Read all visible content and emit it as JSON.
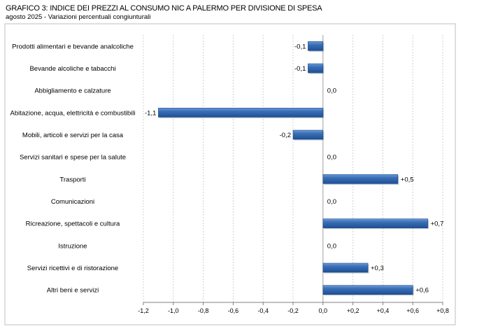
{
  "chart_data": {
    "type": "bar",
    "orientation": "horizontal",
    "title": "GRAFICO 3: INDICE DEI PREZZI AL CONSUMO NIC A PALERMO PER DIVISIONE DI SPESA",
    "subtitle": "agosto 2025 - Variazioni percentuali congiunturali",
    "xlabel": "",
    "ylabel": "",
    "xlim": [
      -1.2,
      0.8
    ],
    "x_ticks": [
      -1.2,
      -1.0,
      -0.8,
      -0.6,
      -0.4,
      -0.2,
      0.0,
      0.2,
      0.4,
      0.6,
      0.8
    ],
    "x_tick_labels": [
      "-1,2",
      "-1,0",
      "-0,8",
      "-0,6",
      "-0,4",
      "-0,2",
      "0,0",
      "+0,2",
      "+0,4",
      "+0,6",
      "+0,8"
    ],
    "grid": "vertical",
    "legend": "none",
    "bar_color": "#2f62a8",
    "categories": [
      "Prodotti alimentari e bevande analcoliche",
      "Bevande alcoliche e tabacchi",
      "Abbigliamento e calzature",
      "Abitazione, acqua, elettricità e combustibili",
      "Mobili, articoli e servizi per la casa",
      "Servizi sanitari e spese per la salute",
      "Trasporti",
      "Comunicazioni",
      "Ricreazione, spettacoli e cultura",
      "Istruzione",
      "Servizi ricettivi e di ristorazione",
      "Altri beni e servizi"
    ],
    "values": [
      -0.1,
      -0.1,
      0.0,
      -1.1,
      -0.2,
      0.0,
      0.5,
      0.0,
      0.7,
      0.0,
      0.3,
      0.6
    ],
    "value_labels": [
      "-0,1",
      "-0,1",
      "0,0",
      "-1,1",
      "-0,2",
      "0,0",
      "+0,5",
      "0,0",
      "+0,7",
      "0,0",
      "+0,3",
      "+0,6"
    ]
  }
}
